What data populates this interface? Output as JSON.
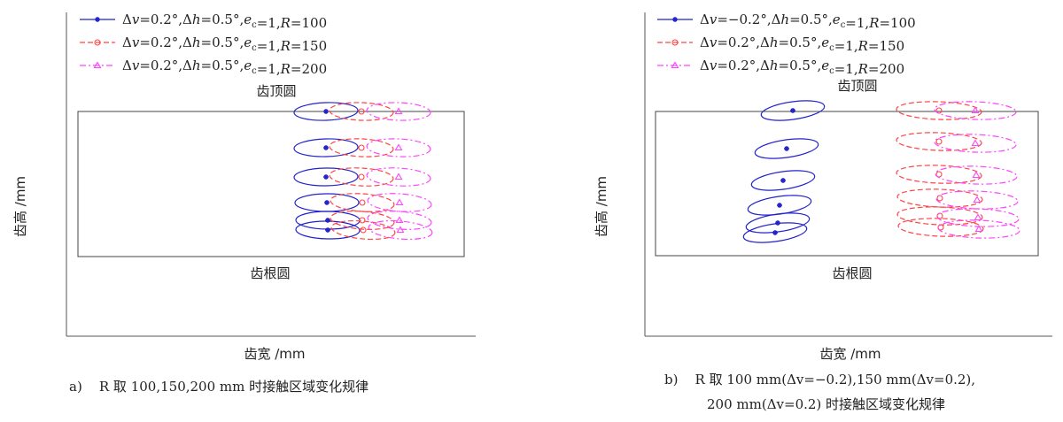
{
  "chart_data": [
    {
      "type": "scatter",
      "panel_label": "a)",
      "caption": "R 取 100,150,200 mm 时接触区域变化规律",
      "xlabel": "齿宽 /mm",
      "ylabel": "齿高 /mm",
      "annotations": [
        "齿顶圆",
        "齿根圆"
      ],
      "legend_location": "top-left",
      "series": [
        {
          "name": "Δv=0.2°,Δh=0.5°,ec=1,R=100",
          "color": "#2222cc",
          "dash": "solid",
          "marker": "star",
          "centers": [
            [
              368,
              126
            ],
            [
              368,
              167
            ],
            [
              368,
              200
            ],
            [
              369,
              229
            ],
            [
              370,
              249
            ],
            [
              370,
              260
            ]
          ]
        },
        {
          "name": "Δv=0.2°,Δh=0.5°,ec=1,R=150",
          "color": "#ff4444",
          "dash": "dashed",
          "marker": "circle",
          "centers": [
            [
              408,
              126
            ],
            [
              408,
              167
            ],
            [
              408,
              200
            ],
            [
              409,
              229
            ],
            [
              409,
              249
            ],
            [
              410,
              260
            ]
          ]
        },
        {
          "name": "Δv=0.2°,Δh=0.5°,ec=1,R=200",
          "color": "#ff44ff",
          "dash": "dashdot",
          "marker": "triangle",
          "centers": [
            [
              450,
              126
            ],
            [
              450,
              167
            ],
            [
              450,
              200
            ],
            [
              451,
              229
            ],
            [
              451,
              249
            ],
            [
              452,
              260
            ]
          ]
        }
      ]
    },
    {
      "type": "scatter",
      "panel_label": "b)",
      "caption": "R 取 100 mm(Δv=−0.2),150 mm(Δv=0.2),",
      "caption_line2": "200 mm(Δv=0.2) 时接触区域变化规律",
      "xlabel": "齿宽 /mm",
      "ylabel": "齿高 /mm",
      "annotations": [
        "齿顶圆",
        "齿根圆"
      ],
      "legend_location": "top-left",
      "series": [
        {
          "name": "Δv=−0.2°,Δh=0.5°,ec=1,R=100",
          "color": "#2222cc",
          "dash": "solid",
          "marker": "star",
          "centers": [
            [
              895,
              125
            ],
            [
              888,
              168
            ],
            [
              884,
              204
            ],
            [
              880,
              232
            ],
            [
              878,
              252
            ],
            [
              875,
              263
            ]
          ]
        },
        {
          "name": "Δv=0.2°,Δh=0.5°,ec=1,R=150",
          "color": "#ff4444",
          "dash": "dashed",
          "marker": "circle",
          "centers": [
            [
              1060,
              125
            ],
            [
              1060,
              160
            ],
            [
              1060,
              197
            ],
            [
              1061,
              224
            ],
            [
              1061,
              244
            ],
            [
              1062,
              257
            ]
          ]
        },
        {
          "name": "Δv=0.2°,Δh=0.5°,ec=1,R=200",
          "color": "#ff44ff",
          "dash": "dashdot",
          "marker": "triangle",
          "centers": [
            [
              1101,
              125
            ],
            [
              1101,
              162
            ],
            [
              1102,
              198
            ],
            [
              1103,
              226
            ],
            [
              1104,
              246
            ],
            [
              1105,
              259
            ]
          ]
        }
      ]
    }
  ],
  "legend_a": [
    {
      "pre": "Δ",
      "v": "v",
      "eq1": "=0.2°,Δ",
      "h": "h",
      "eq2": "=0.5°,",
      "e": "e",
      "sub": "c",
      "eq3": "=1,",
      "R": "R",
      "eq4": "=100"
    },
    {
      "pre": "Δ",
      "v": "v",
      "eq1": "=0.2°,Δ",
      "h": "h",
      "eq2": "=0.5°,",
      "e": "e",
      "sub": "c",
      "eq3": "=1,",
      "R": "R",
      "eq4": "=150"
    },
    {
      "pre": "Δ",
      "v": "v",
      "eq1": "=0.2°,Δ",
      "h": "h",
      "eq2": "=0.5°,",
      "e": "e",
      "sub": "c",
      "eq3": "=1,",
      "R": "R",
      "eq4": "=200"
    }
  ],
  "legend_b": [
    {
      "pre": "Δ",
      "v": "v",
      "eq1": "=−0.2°,Δ",
      "h": "h",
      "eq2": "=0.5°,",
      "e": "e",
      "sub": "c",
      "eq3": "=1,",
      "R": "R",
      "eq4": "=100"
    },
    {
      "pre": "Δ",
      "v": "v",
      "eq1": "=0.2°,Δ",
      "h": "h",
      "eq2": "=0.5°,",
      "e": "e",
      "sub": "c",
      "eq3": "=1,",
      "R": "R",
      "eq4": "=150"
    },
    {
      "pre": "Δ",
      "v": "v",
      "eq1": "=0.2°,Δ",
      "h": "h",
      "eq2": "=0.5°,",
      "e": "e",
      "sub": "c",
      "eq3": "=1,",
      "R": "R",
      "eq4": "=200"
    }
  ]
}
